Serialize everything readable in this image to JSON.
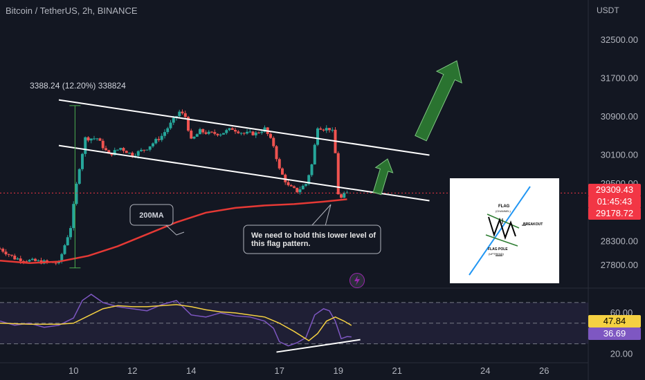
{
  "header": {
    "symbol_title": "Bitcoin / TetherUS, 2h, BINANCE",
    "currency": "USDT"
  },
  "price_labels": {
    "last_price": "29309.43",
    "countdown": "01:45:43",
    "ma_value": "29178.72"
  },
  "annotations": {
    "measure": "3388.24 (12.20%) 338824",
    "ma_callout": "200MA",
    "note_line1": "We need to hold this lower level of",
    "note_line2": "this flag pattern."
  },
  "flag_diagram": {
    "flag_label": "FLAG",
    "channel_label": "(CHANNEL)",
    "breakout_label": "BREAKOUT",
    "pole_label": "FLAG POLE",
    "uptrend_label": "(UPTREND)"
  },
  "rsi_labels": {
    "rsi_ma": "47.84",
    "rsi": "36.69"
  },
  "colors": {
    "background": "#131722",
    "up_candle": "#26a69a",
    "down_candle": "#ef5350",
    "ma200": "#e53935",
    "rsi": "#7e57c2",
    "rsi_ma": "#f5d142",
    "arrow": "#2e7d32"
  },
  "chart_data": [
    {
      "type": "line",
      "title": "Bitcoin / TetherUS, 2h, BINANCE",
      "y_ticks": [
        "32500.00",
        "31700.00",
        "30900.00",
        "30100.00",
        "29500.00",
        "28300.00",
        "27800.00"
      ],
      "y_tick_values": [
        32500,
        31700,
        30900,
        30100,
        29500,
        28300,
        27800
      ],
      "x_ticks": [
        "10",
        "12",
        "14",
        "17",
        "19",
        "21",
        "24",
        "26"
      ],
      "x_tick_values": [
        10,
        12,
        14,
        17,
        19,
        21,
        24,
        26
      ],
      "xlim": [
        7.5,
        27.5
      ],
      "ylim": [
        27400,
        32900
      ],
      "series": [
        {
          "name": "Price",
          "x": [
            7.5,
            8.0,
            8.5,
            9.0,
            9.5,
            9.9,
            10.15,
            10.4,
            10.8,
            11.2,
            11.6,
            12.0,
            12.5,
            13.0,
            13.3,
            13.6,
            13.8,
            14.0,
            14.3,
            14.6,
            15.0,
            15.4,
            15.8,
            16.2,
            16.5,
            16.8,
            17.0,
            17.3,
            17.6,
            17.9,
            18.1,
            18.3,
            18.5,
            18.7,
            18.85,
            19.0,
            19.1,
            19.25,
            19.4
          ],
          "values": [
            28150,
            27950,
            27900,
            27870,
            27850,
            28600,
            29700,
            30450,
            30450,
            30100,
            30250,
            30100,
            30250,
            30500,
            30750,
            31000,
            30900,
            30400,
            30600,
            30550,
            30550,
            30650,
            30550,
            30550,
            30650,
            30300,
            29800,
            29450,
            29350,
            29500,
            29900,
            30700,
            30650,
            30650,
            30550,
            29300,
            29200,
            29300,
            29310
          ]
        },
        {
          "name": "200MA",
          "x": [
            7.5,
            8.5,
            9.5,
            10.5,
            11.5,
            12.5,
            13.5,
            14.5,
            15.5,
            16.5,
            17.5,
            18.5,
            19.3
          ],
          "values": [
            27900,
            27850,
            27880,
            28000,
            28200,
            28450,
            28700,
            28900,
            29000,
            29050,
            29080,
            29130,
            29180
          ]
        }
      ],
      "trendlines": [
        {
          "x": [
            9.5,
            22.1
          ],
          "values": [
            31250,
            30100
          ]
        },
        {
          "x": [
            9.5,
            22.1
          ],
          "values": [
            30300,
            29150
          ]
        }
      ]
    },
    {
      "type": "line",
      "y_ticks": [
        "60.00",
        "20.00"
      ],
      "y_tick_values": [
        60,
        20
      ],
      "ylim": [
        15,
        82
      ],
      "levels": [
        70,
        50,
        30
      ],
      "series": [
        {
          "x": [
            7.5,
            8.0,
            8.5,
            9.0,
            9.5,
            10.0,
            10.3,
            10.6,
            11.0,
            11.5,
            12.0,
            12.5,
            13.0,
            13.5,
            14.0,
            14.5,
            15.0,
            15.5,
            16.0,
            16.5,
            16.8,
            17.0,
            17.3,
            17.6,
            17.9,
            18.2,
            18.5,
            18.7,
            18.9,
            19.1,
            19.3,
            19.45
          ],
          "values": [
            52,
            48,
            50,
            46,
            48,
            55,
            72,
            78,
            70,
            66,
            64,
            62,
            68,
            72,
            58,
            56,
            60,
            57,
            56,
            52,
            45,
            32,
            28,
            31,
            36,
            58,
            64,
            62,
            52,
            35,
            37,
            36.69
          ]
        },
        {
          "x": [
            7.5,
            8.5,
            9.5,
            10.0,
            10.5,
            11.0,
            11.5,
            12.0,
            12.5,
            13.0,
            13.5,
            14.0,
            14.5,
            15.0,
            15.5,
            16.0,
            16.5,
            17.0,
            17.5,
            18.0,
            18.3,
            18.6,
            18.9,
            19.2,
            19.45
          ],
          "values": [
            50,
            49,
            49,
            50,
            57,
            64,
            67,
            66,
            66,
            67,
            68,
            66,
            63,
            61,
            60,
            58,
            56,
            50,
            42,
            33,
            40,
            52,
            56,
            52,
            47.84
          ]
        }
      ],
      "trendlines": [
        {
          "x": [
            16.9,
            19.75
          ],
          "values": [
            22,
            34
          ]
        }
      ]
    }
  ]
}
